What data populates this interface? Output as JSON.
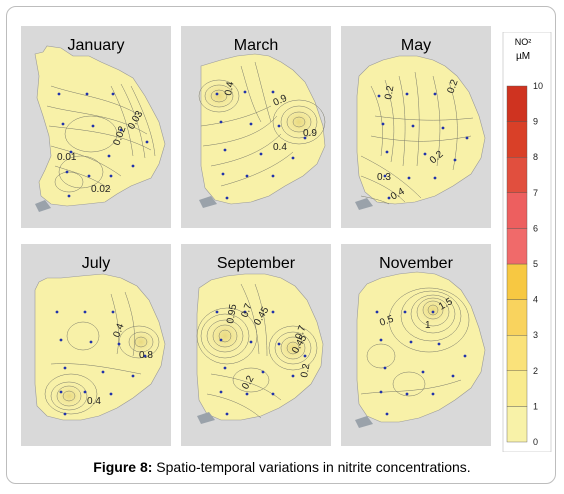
{
  "legend": {
    "unit_line1": "NO²",
    "unit_line2": "µM",
    "ticks": [
      "10",
      "9",
      "8",
      "7",
      "6",
      "5",
      "4",
      "3",
      "2",
      "1",
      "0"
    ],
    "colors": [
      "#f8f2a8",
      "#f9eb8e",
      "#fae27a",
      "#f9d35e",
      "#f7c842",
      "#f06a6a",
      "#ed5f5f",
      "#e14f3e",
      "#d94028",
      "#cf3320"
    ]
  },
  "panels": [
    {
      "month": "January",
      "labels": [
        "0.03",
        "0.02",
        "0.01",
        "0.02"
      ]
    },
    {
      "month": "March",
      "labels": [
        "0.4",
        "0.9",
        "0.9",
        "0.4"
      ]
    },
    {
      "month": "May",
      "labels": [
        "0.2",
        "0.2",
        "0.2",
        "0.3",
        "0.4"
      ]
    },
    {
      "month": "July",
      "labels": [
        "0.4",
        "0.8",
        "0.4"
      ]
    },
    {
      "month": "September",
      "labels": [
        "0.95",
        "0.7",
        "0.45",
        "0.7",
        "0.45",
        "0.2",
        "0.2"
      ]
    },
    {
      "month": "November",
      "labels": [
        "0.5",
        "1",
        "1.5"
      ]
    }
  ],
  "caption": {
    "prefix": "Figure 8:",
    "text": " Spatio-temporal variations in nitrite concentrations."
  }
}
